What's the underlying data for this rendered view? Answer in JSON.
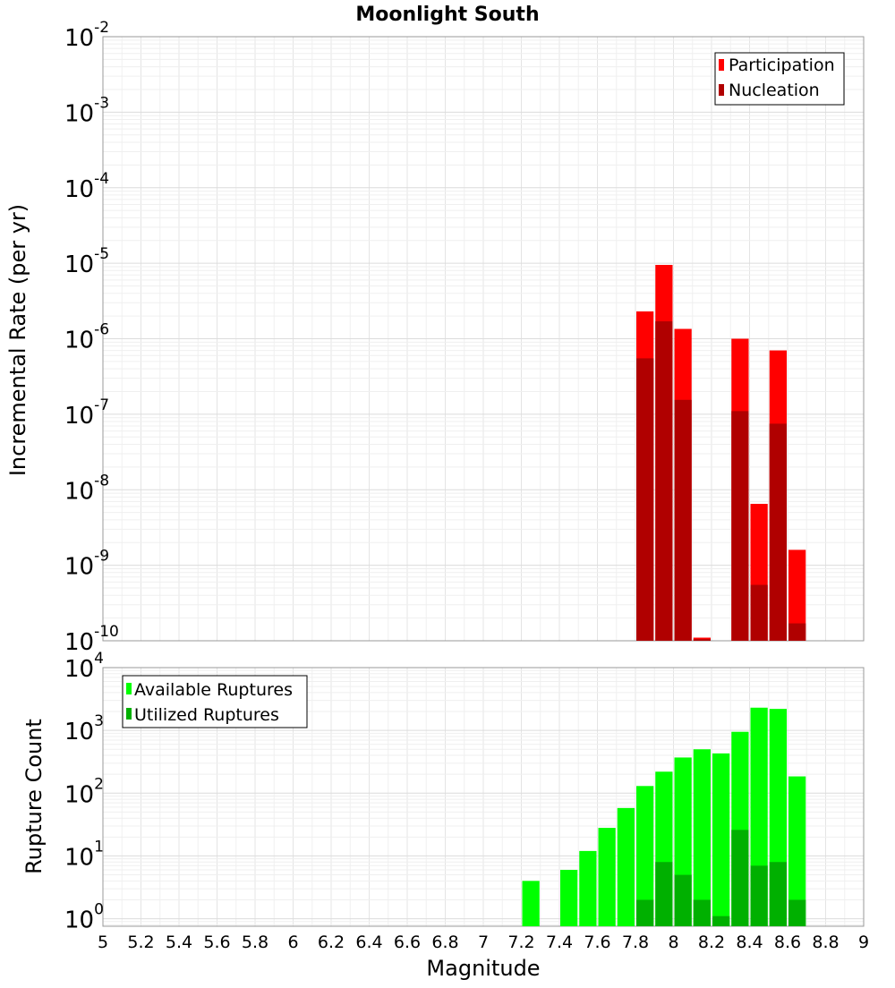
{
  "chart_data": [
    {
      "type": "bar",
      "title": "Moonlight South",
      "xlabel": "",
      "ylabel": "Incremental Rate (per yr)",
      "yscale": "log",
      "ylim_exp": [
        -10,
        -2
      ],
      "xlim": [
        5,
        9
      ],
      "bin_width": 0.1,
      "y_tick_exponents": [
        "-2",
        "-3",
        "-4",
        "-5",
        "-6",
        "-7",
        "-8",
        "-9",
        "-10"
      ],
      "y_tick_base": "10",
      "legend_position": "top-right",
      "series": [
        {
          "name": "Participation",
          "color": "#ff0000",
          "x": [
            7.85,
            7.95,
            8.05,
            8.15,
            8.35,
            8.45,
            8.55,
            8.65
          ],
          "values": [
            2.3e-06,
            9.5e-06,
            1.35e-06,
            1.1e-10,
            1e-06,
            6.5e-09,
            7e-07,
            1.6e-09
          ]
        },
        {
          "name": "Nucleation",
          "color": "#b00000",
          "x": [
            7.85,
            7.95,
            8.05,
            8.15,
            8.35,
            8.45,
            8.55,
            8.65
          ],
          "values": [
            5.5e-07,
            1.7e-06,
            1.55e-07,
            1.05e-10,
            1.1e-07,
            5.5e-10,
            7.5e-08,
            1.7e-10
          ]
        }
      ]
    },
    {
      "type": "bar",
      "title": "",
      "xlabel": "Magnitude",
      "ylabel": "Rupture Count",
      "yscale": "log",
      "ylim_exp": [
        -0.12,
        4
      ],
      "xlim": [
        5,
        9
      ],
      "bin_width": 0.1,
      "y_tick_exponents": [
        "4",
        "3",
        "2",
        "1",
        "0"
      ],
      "y_tick_base": "10",
      "x_ticks": [
        "5",
        "5.2",
        "5.4",
        "5.6",
        "5.8",
        "6",
        "6.2",
        "6.4",
        "6.6",
        "6.8",
        "7",
        "7.2",
        "7.4",
        "7.6",
        "7.8",
        "8",
        "8.2",
        "8.4",
        "8.6",
        "8.8",
        "9"
      ],
      "legend_position": "top-left",
      "series": [
        {
          "name": "Available Ruptures",
          "color": "#00ff00",
          "x": [
            7.25,
            7.45,
            7.55,
            7.65,
            7.75,
            7.85,
            7.95,
            8.05,
            8.15,
            8.25,
            8.35,
            8.45,
            8.55,
            8.65
          ],
          "values": [
            4,
            6,
            12,
            28,
            58,
            130,
            220,
            370,
            500,
            430,
            950,
            2300,
            2200,
            185
          ]
        },
        {
          "name": "Utilized Ruptures",
          "color": "#00b000",
          "x": [
            7.85,
            7.95,
            8.05,
            8.15,
            8.25,
            8.35,
            8.45,
            8.55,
            8.65
          ],
          "values": [
            2,
            8,
            5,
            2,
            1.1,
            26,
            7,
            8,
            2
          ]
        }
      ]
    }
  ]
}
